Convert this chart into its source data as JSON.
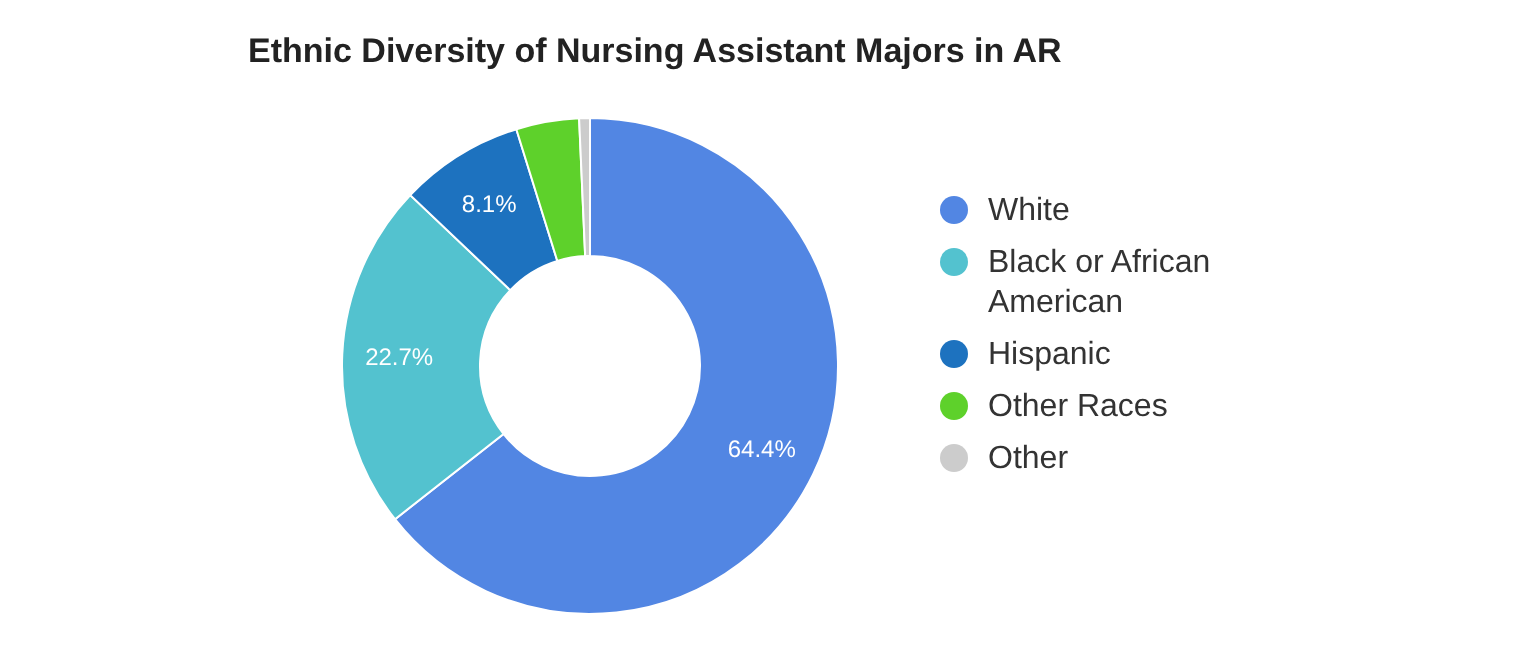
{
  "chart_data": {
    "type": "donut",
    "title": "Ethnic Diversity of Nursing Assistant Majors in AR",
    "categories": [
      "White",
      "Black or African American",
      "Hispanic",
      "Other Races",
      "Other"
    ],
    "values": [
      64.4,
      22.7,
      8.1,
      4.1,
      0.7
    ],
    "colors": [
      "#5286e3",
      "#53c2cf",
      "#1d72bf",
      "#5ed12b",
      "#cccccc"
    ],
    "value_labels": [
      "64.4%",
      "22.7%",
      "8.1%",
      null,
      null
    ],
    "legend": "right"
  }
}
